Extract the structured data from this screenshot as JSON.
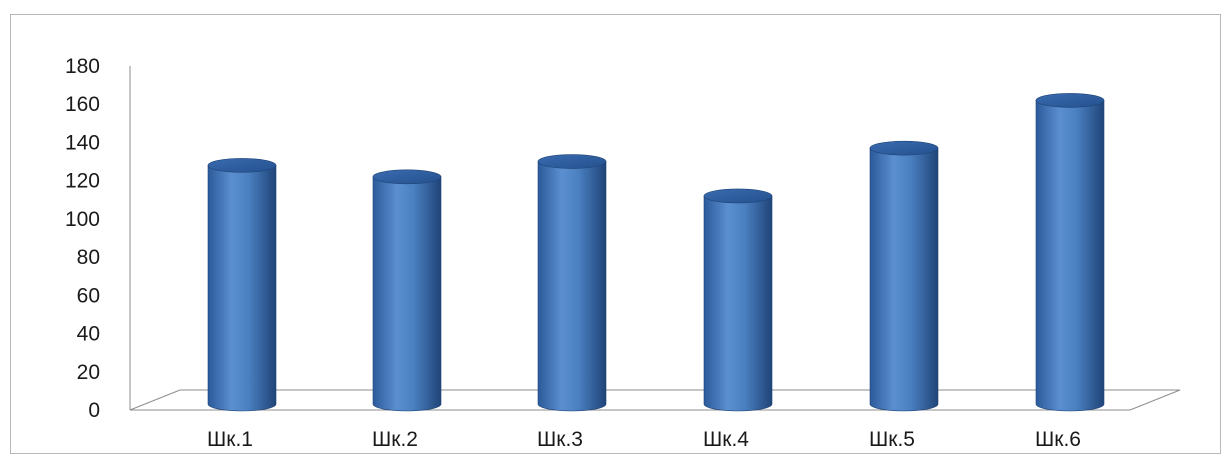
{
  "chart_data": {
    "type": "bar",
    "style": "3d-cylinder",
    "categories": [
      "Шк.1",
      "Шк.2",
      "Шк.3",
      "Шк.4",
      "Шк.5",
      "Шк.6"
    ],
    "series": [
      {
        "values": [
          128,
          122,
          130,
          112,
          137,
          162
        ],
        "color": "#4a7fc0"
      }
    ],
    "y_ticks": [
      "0",
      "20",
      "40",
      "60",
      "80",
      "100",
      "120",
      "140",
      "160",
      "180"
    ],
    "ylim": [
      0,
      180
    ],
    "title": "",
    "xlabel": "",
    "ylabel": "",
    "grid": false,
    "legend": "none"
  }
}
